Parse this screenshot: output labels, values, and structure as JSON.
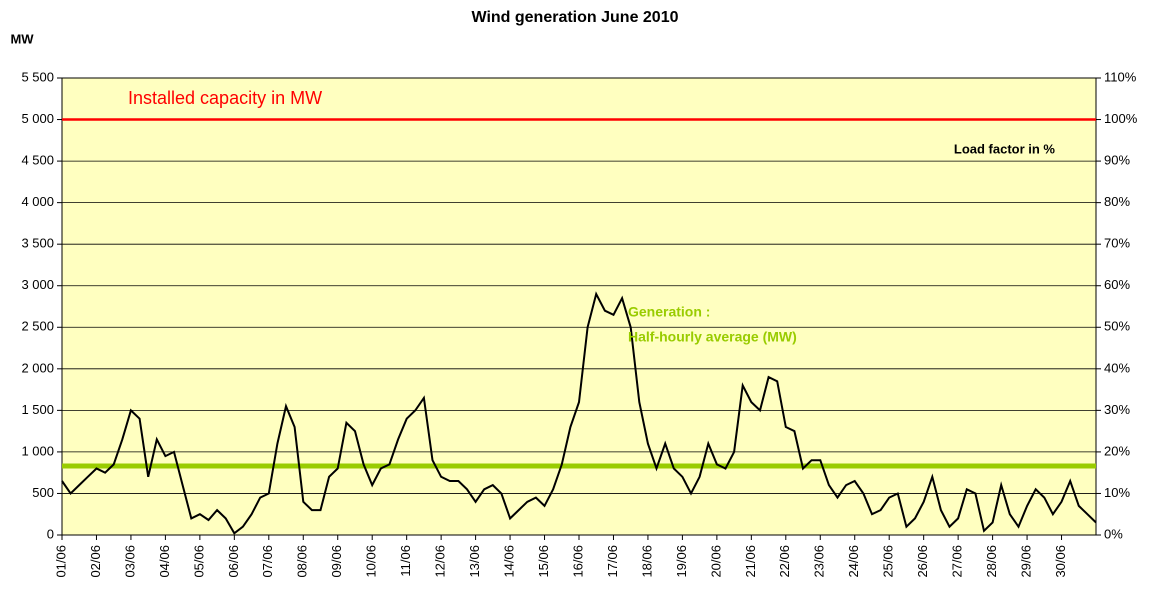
{
  "chart_data": {
    "type": "line",
    "title": "Wind generation June 2010",
    "y_label": "MW",
    "xlim": [
      0,
      30
    ],
    "xticks": [
      {
        "value": 0,
        "label": "01/06"
      },
      {
        "value": 1,
        "label": "02/06"
      },
      {
        "value": 2,
        "label": "03/06"
      },
      {
        "value": 3,
        "label": "04/06"
      },
      {
        "value": 4,
        "label": "05/06"
      },
      {
        "value": 5,
        "label": "06/06"
      },
      {
        "value": 6,
        "label": "07/06"
      },
      {
        "value": 7,
        "label": "08/06"
      },
      {
        "value": 8,
        "label": "09/06"
      },
      {
        "value": 9,
        "label": "10/06"
      },
      {
        "value": 10,
        "label": "11/06"
      },
      {
        "value": 11,
        "label": "12/06"
      },
      {
        "value": 12,
        "label": "13/06"
      },
      {
        "value": 13,
        "label": "14/06"
      },
      {
        "value": 14,
        "label": "15/06"
      },
      {
        "value": 15,
        "label": "16/06"
      },
      {
        "value": 16,
        "label": "17/06"
      },
      {
        "value": 17,
        "label": "18/06"
      },
      {
        "value": 18,
        "label": "19/06"
      },
      {
        "value": 19,
        "label": "20/06"
      },
      {
        "value": 20,
        "label": "21/06"
      },
      {
        "value": 21,
        "label": "22/06"
      },
      {
        "value": 22,
        "label": "23/06"
      },
      {
        "value": 23,
        "label": "24/06"
      },
      {
        "value": 24,
        "label": "25/06"
      },
      {
        "value": 25,
        "label": "26/06"
      },
      {
        "value": 26,
        "label": "27/06"
      },
      {
        "value": 27,
        "label": "28/06"
      },
      {
        "value": 28,
        "label": "29/06"
      },
      {
        "value": 29,
        "label": "30/06"
      }
    ],
    "ylim": [
      0,
      5500
    ],
    "yticks": [
      0,
      500,
      {
        "value": 1000,
        "label": "1 000"
      },
      {
        "value": 1500,
        "label": "1 500"
      },
      {
        "value": 2000,
        "label": "2 000"
      },
      {
        "value": 2500,
        "label": "2 500"
      },
      {
        "value": 3000,
        "label": "3 000"
      },
      {
        "value": 3500,
        "label": "3 500"
      },
      {
        "value": 4000,
        "label": "4 000"
      },
      {
        "value": 4500,
        "label": "4 500"
      },
      {
        "value": 5000,
        "label": "5 000"
      },
      {
        "value": 5500,
        "label": "5 500"
      }
    ],
    "y2lim": [
      0,
      110
    ],
    "y2ticks": [
      {
        "value": 0,
        "label": "0%"
      },
      {
        "value": 10,
        "label": "10%"
      },
      {
        "value": 20,
        "label": "20%"
      },
      {
        "value": 30,
        "label": "30%"
      },
      {
        "value": 40,
        "label": "40%"
      },
      {
        "value": 50,
        "label": "50%"
      },
      {
        "value": 60,
        "label": "60%"
      },
      {
        "value": 70,
        "label": "70%"
      },
      {
        "value": 80,
        "label": "80%"
      },
      {
        "value": 90,
        "label": "90%"
      },
      {
        "value": 100,
        "label": "100%"
      },
      {
        "value": 110,
        "label": "110%"
      }
    ],
    "grid": true,
    "background": "#ffffc0",
    "x": [
      0,
      0.25,
      0.5,
      0.75,
      1,
      1.25,
      1.5,
      1.75,
      2,
      2.25,
      2.5,
      2.75,
      3,
      3.25,
      3.5,
      3.75,
      4,
      4.25,
      4.5,
      4.75,
      5,
      5.25,
      5.5,
      5.75,
      6,
      6.25,
      6.5,
      6.75,
      7,
      7.25,
      7.5,
      7.75,
      8,
      8.25,
      8.5,
      8.75,
      9,
      9.25,
      9.5,
      9.75,
      10,
      10.25,
      10.5,
      10.75,
      11,
      11.25,
      11.5,
      11.75,
      12,
      12.25,
      12.5,
      12.75,
      13,
      13.25,
      13.5,
      13.75,
      14,
      14.25,
      14.5,
      14.75,
      15,
      15.25,
      15.5,
      15.75,
      16,
      16.25,
      16.5,
      16.75,
      17,
      17.25,
      17.5,
      17.75,
      18,
      18.25,
      18.5,
      18.75,
      19,
      19.25,
      19.5,
      19.75,
      20,
      20.25,
      20.5,
      20.75,
      21,
      21.25,
      21.5,
      21.75,
      22,
      22.25,
      22.5,
      22.75,
      23,
      23.25,
      23.5,
      23.75,
      24,
      24.25,
      24.5,
      24.75,
      25,
      25.25,
      25.5,
      25.75,
      26,
      26.25,
      26.5,
      26.75,
      27,
      27.25,
      27.5,
      27.75,
      28,
      28.25,
      28.5,
      28.75,
      29,
      29.25,
      29.5,
      29.75,
      30
    ],
    "series": [
      {
        "color": "#000000",
        "values": [
          650,
          500,
          600,
          700,
          800,
          750,
          850,
          1150,
          1500,
          1400,
          700,
          1150,
          950,
          1000,
          600,
          200,
          250,
          180,
          300,
          200,
          20,
          100,
          250,
          450,
          500,
          1100,
          1550,
          1300,
          400,
          300,
          300,
          700,
          800,
          1350,
          1250,
          850,
          600,
          800,
          850,
          1150,
          1400,
          1500,
          1650,
          900,
          700,
          650,
          650,
          550,
          400,
          550,
          600,
          500,
          200,
          300,
          400,
          450,
          350,
          550,
          850,
          1300,
          1600,
          2500,
          2900,
          2700,
          2650,
          2850,
          2500,
          1600,
          1100,
          800,
          1100,
          800,
          700,
          500,
          700,
          1100,
          850,
          800,
          1000,
          1800,
          1600,
          1500,
          1900,
          1850,
          1300,
          1250,
          800,
          900,
          900,
          600,
          450,
          600,
          650,
          500,
          250,
          300,
          450,
          500,
          100,
          200,
          400,
          700,
          300,
          100,
          200,
          550,
          500,
          50,
          150,
          600,
          250,
          100,
          350,
          550,
          450,
          250,
          400,
          650,
          350,
          250,
          150
        ]
      }
    ],
    "reference_lines": [
      {
        "value": 5000,
        "color": "#ff0000"
      },
      {
        "value": 830,
        "color": "#99cc00"
      }
    ],
    "annotations": [
      {
        "text": "Installed capacity in MW",
        "color": "#ff0000"
      },
      {
        "text": "Load factor in %",
        "color": "#000000"
      },
      {
        "text": "Generation :",
        "color": "#99cc00"
      },
      {
        "text": "Half-hourly average (MW)",
        "color": "#99cc00"
      }
    ]
  }
}
